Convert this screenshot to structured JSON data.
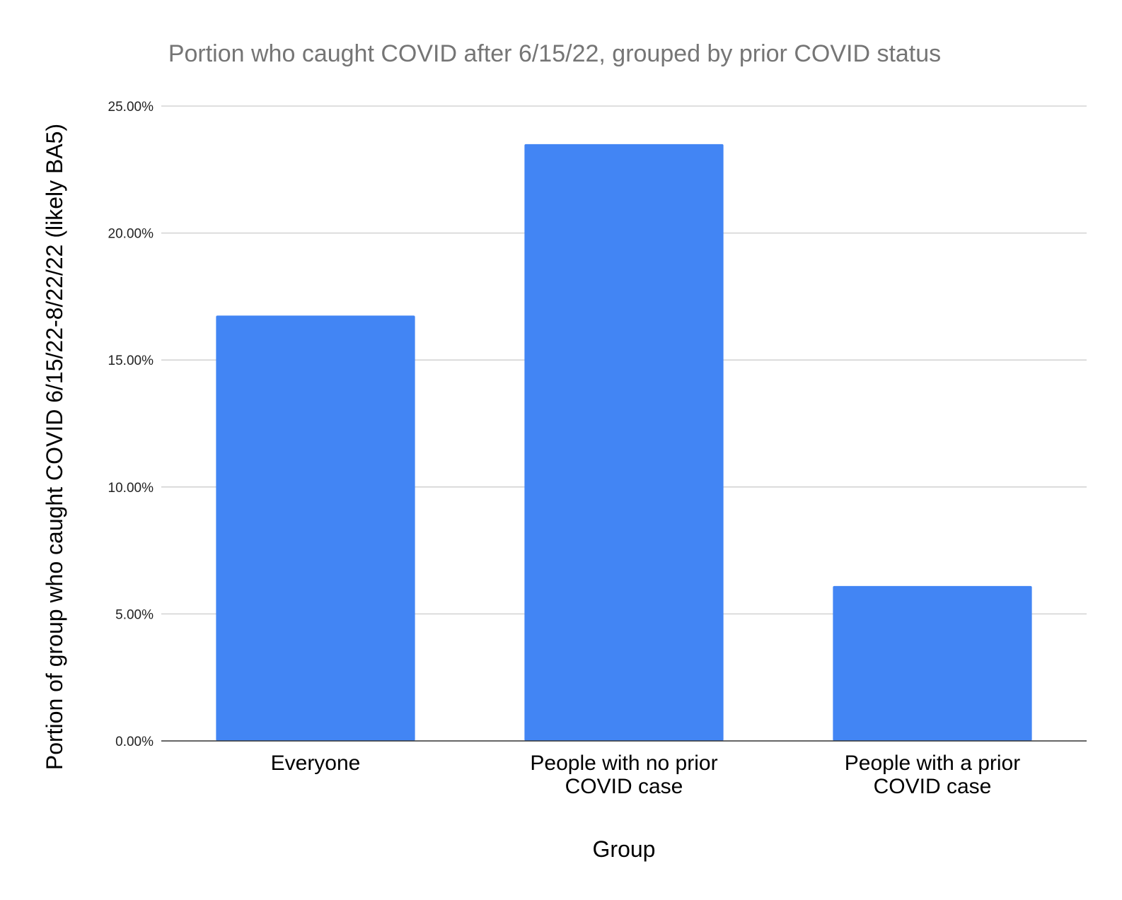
{
  "chart_data": {
    "type": "bar",
    "title": "Portion who caught COVID after 6/15/22, grouped by prior COVID status",
    "xlabel": "Group",
    "ylabel": "Portion of group who caught COVID 6/15/22-8/22/22 (likely BA5)",
    "categories": [
      [
        "Everyone"
      ],
      [
        "People with no prior",
        "COVID case"
      ],
      [
        "People with a prior",
        "COVID case"
      ]
    ],
    "values": [
      16.75,
      23.5,
      6.1
    ],
    "ylim": [
      0,
      25
    ],
    "yticks": [
      0,
      5,
      10,
      15,
      20,
      25
    ],
    "ytick_labels": [
      "0.00%",
      "5.00%",
      "10.00%",
      "15.00%",
      "20.00%",
      "25.00%"
    ],
    "bar_color": "#4285f4",
    "grid": true,
    "legend": "none"
  }
}
